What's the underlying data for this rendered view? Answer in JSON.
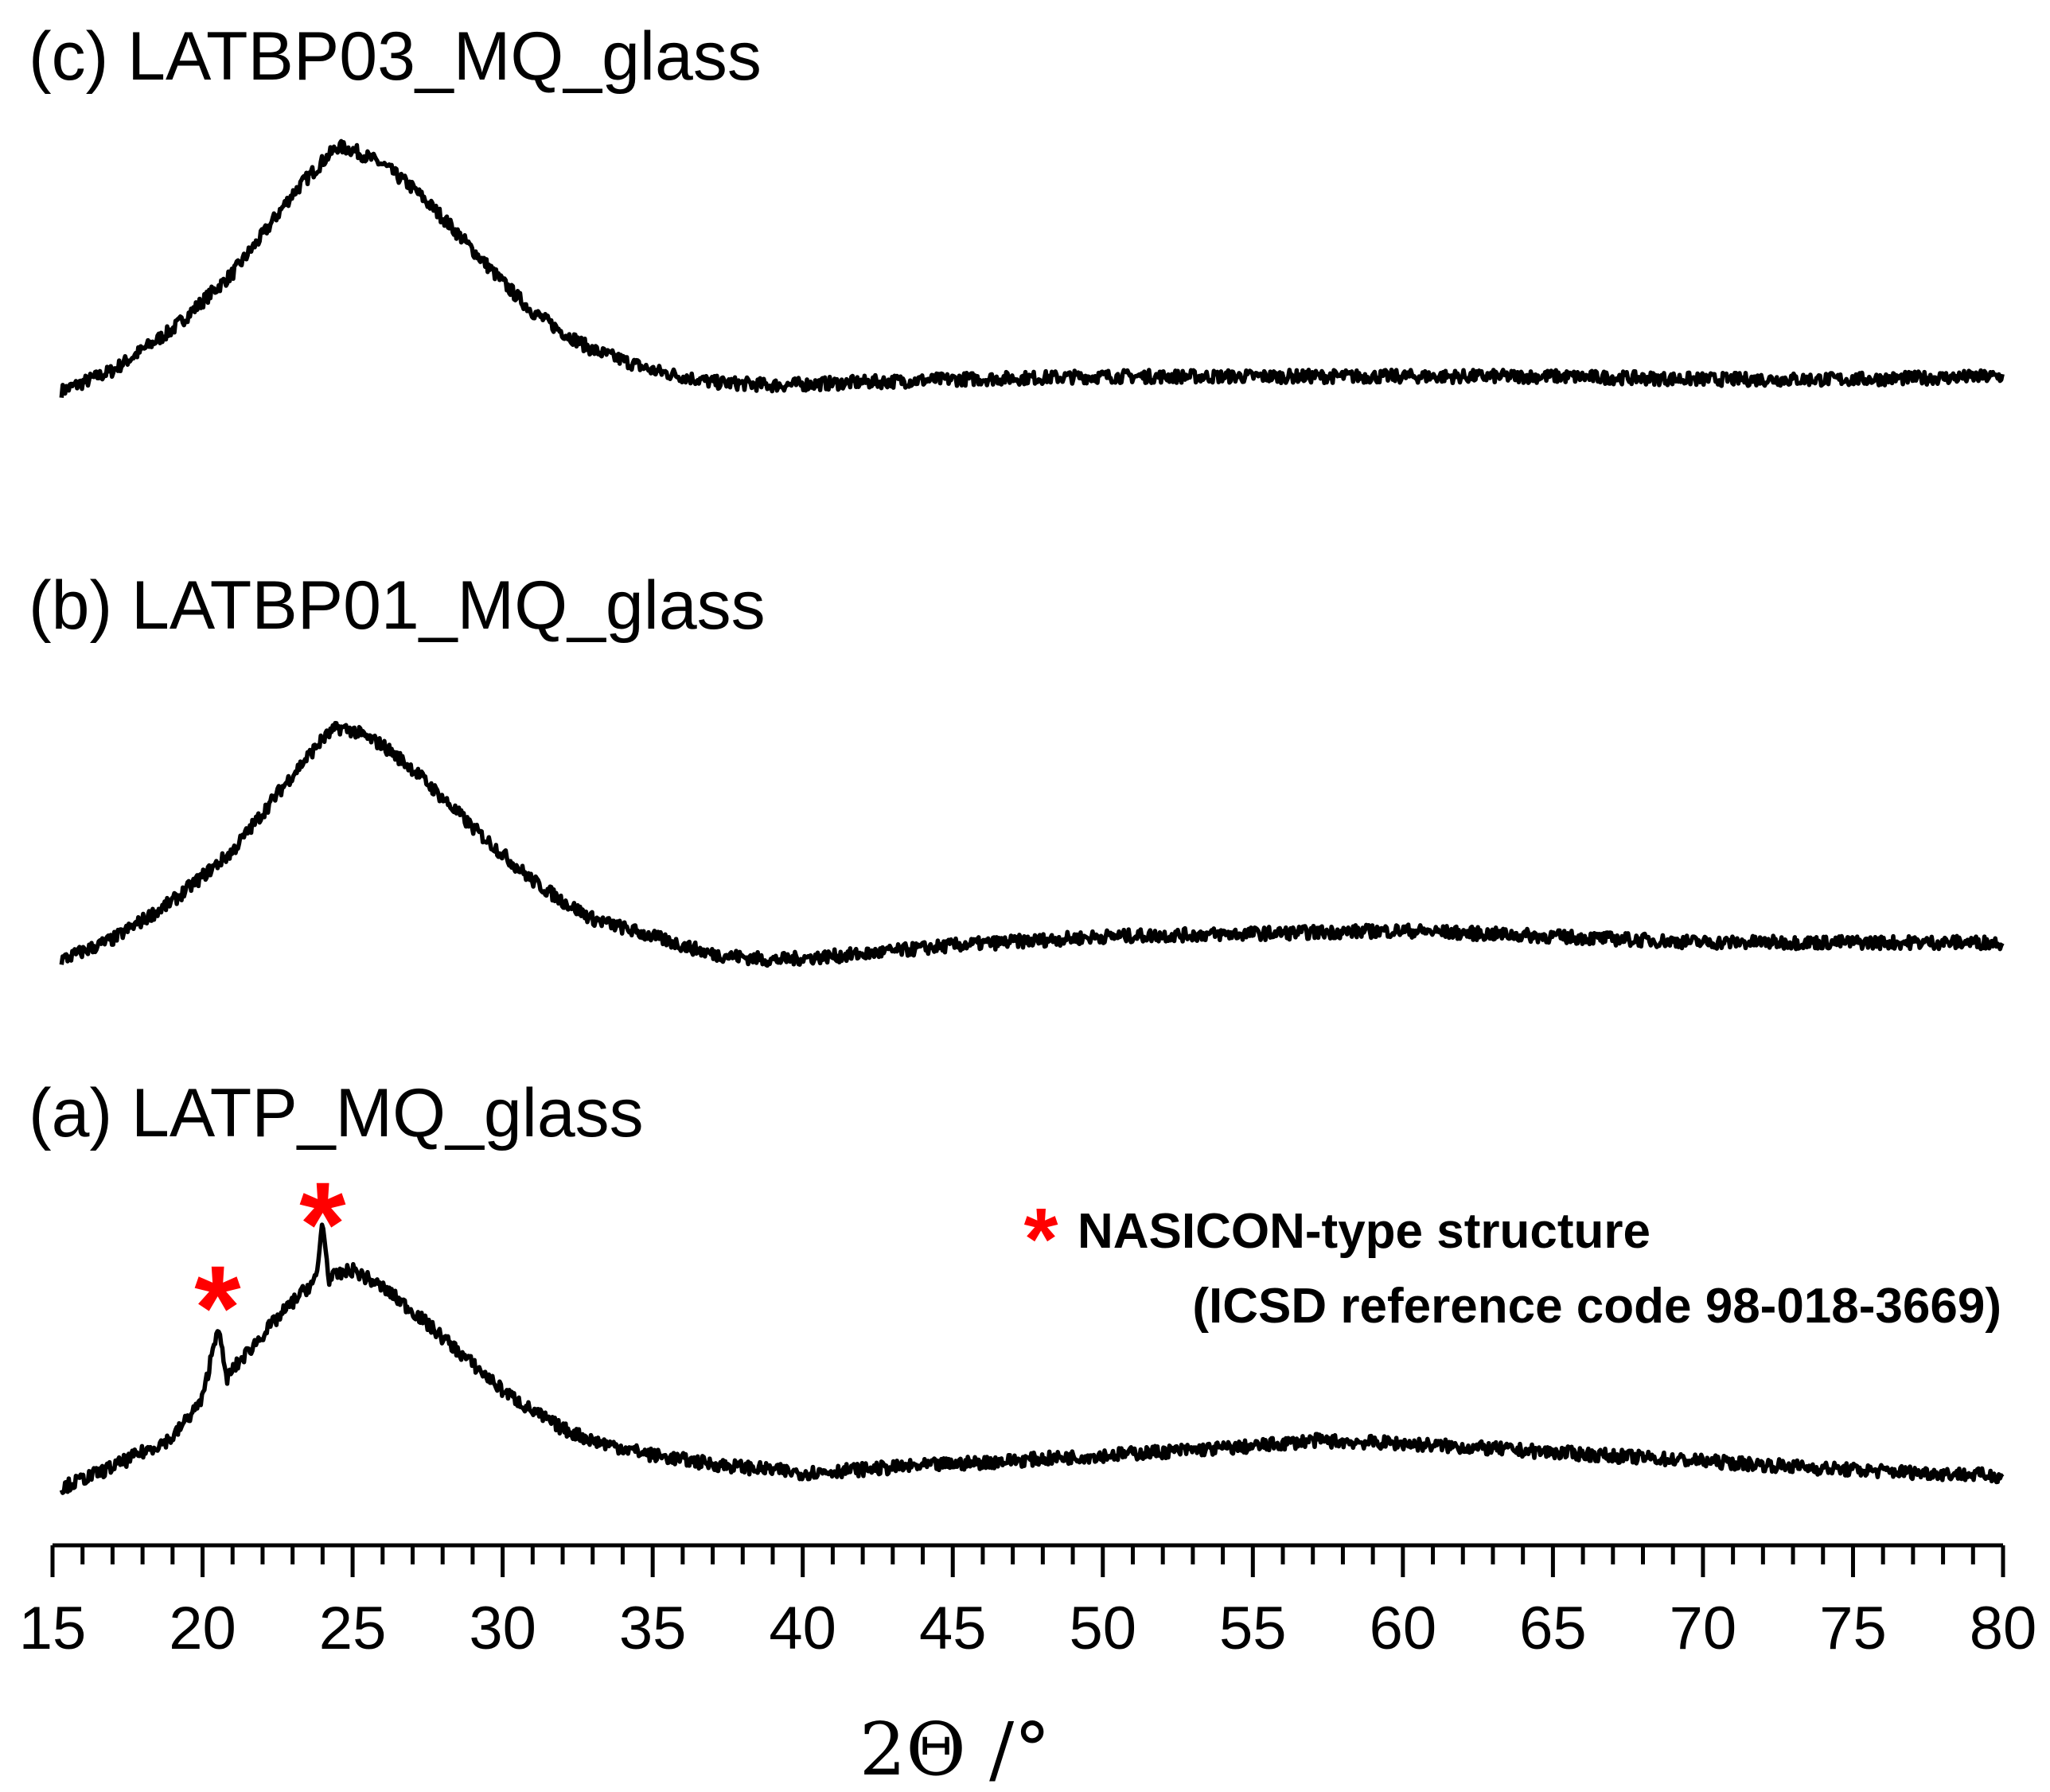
{
  "chart_data": {
    "type": "line",
    "xlabel": "2Θ /°",
    "ylabel": "",
    "xlim": [
      15,
      80
    ],
    "x_ticks": [
      "15",
      "20",
      "25",
      "30",
      "35",
      "40",
      "45",
      "50",
      "55",
      "60",
      "65",
      "70",
      "75",
      "80"
    ],
    "grid": false,
    "series": [
      {
        "name": "(c) LATBP03_MQ_glass",
        "x": [
          15.3,
          17,
          19,
          21,
          22,
          23,
          24,
          24.5,
          25,
          26,
          27,
          28,
          29,
          30,
          31,
          32,
          33,
          35,
          37,
          39,
          42,
          45,
          50,
          55,
          60,
          65,
          70,
          75,
          80
        ],
        "values": [
          0.05,
          0.12,
          0.26,
          0.45,
          0.58,
          0.72,
          0.83,
          0.88,
          0.87,
          0.82,
          0.74,
          0.64,
          0.53,
          0.42,
          0.32,
          0.25,
          0.19,
          0.12,
          0.08,
          0.07,
          0.08,
          0.09,
          0.1,
          0.1,
          0.1,
          0.1,
          0.09,
          0.09,
          0.1
        ]
      },
      {
        "name": "(b) LATBP01_MQ_glass",
        "x": [
          15.3,
          17,
          19,
          21,
          22,
          23,
          24,
          24.5,
          25,
          26,
          27,
          28,
          29,
          30,
          31,
          32,
          33,
          35,
          37,
          39,
          42,
          45,
          50,
          55,
          60,
          65,
          70,
          75,
          80
        ],
        "values": [
          0.05,
          0.12,
          0.25,
          0.42,
          0.55,
          0.68,
          0.8,
          0.84,
          0.83,
          0.78,
          0.7,
          0.6,
          0.5,
          0.41,
          0.32,
          0.25,
          0.19,
          0.13,
          0.07,
          0.05,
          0.07,
          0.1,
          0.13,
          0.14,
          0.15,
          0.13,
          0.11,
          0.11,
          0.11
        ]
      },
      {
        "name": "(a) LATP_MQ_glass",
        "x": [
          15.3,
          17,
          19,
          20,
          20.3,
          20.5,
          20.8,
          21,
          22,
          23,
          23.8,
          24,
          24.2,
          25,
          26,
          27,
          28,
          29,
          30,
          31,
          32,
          33,
          35,
          37,
          40,
          45,
          50,
          55,
          57,
          60,
          65,
          70,
          75,
          80
        ],
        "values": [
          0.05,
          0.12,
          0.22,
          0.35,
          0.5,
          0.6,
          0.42,
          0.45,
          0.57,
          0.68,
          0.76,
          0.96,
          0.76,
          0.79,
          0.73,
          0.65,
          0.56,
          0.47,
          0.38,
          0.31,
          0.25,
          0.21,
          0.16,
          0.13,
          0.1,
          0.13,
          0.16,
          0.19,
          0.21,
          0.2,
          0.17,
          0.14,
          0.11,
          0.09
        ]
      }
    ],
    "annotations": {
      "star_symbol": "*",
      "peak_markers_x": [
        20.5,
        24
      ],
      "legend_star": "*",
      "legend_line1": "NASICON-type structure",
      "legend_line2": "(ICSD reference code 98-018-3669)"
    },
    "colors": {
      "trace": "#000000",
      "marker": "#ff0000",
      "background": "#ffffff"
    }
  }
}
